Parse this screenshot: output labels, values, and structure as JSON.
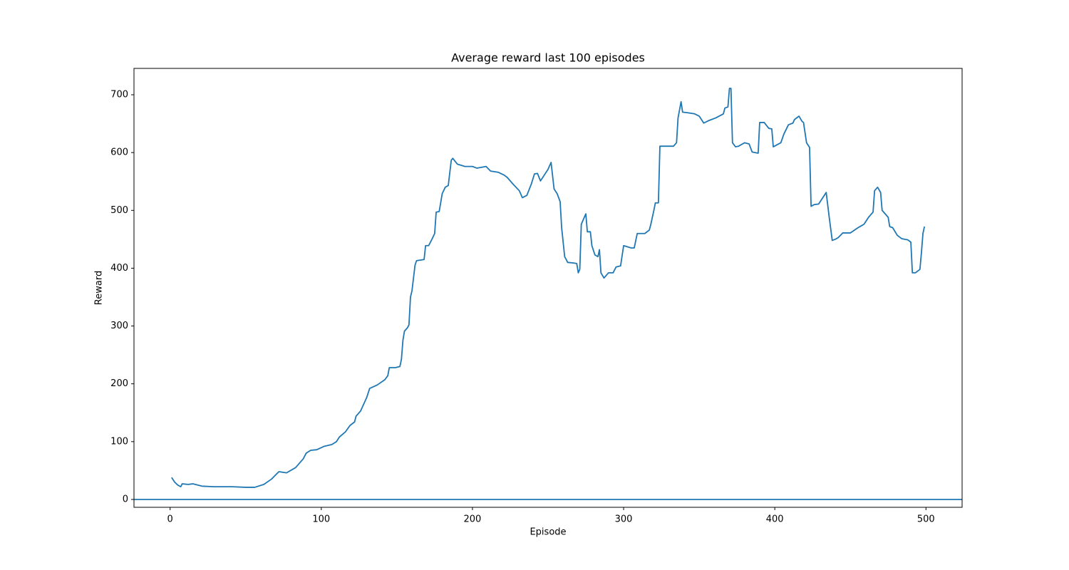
{
  "chart_data": {
    "type": "line",
    "title": "Average reward last 100 episodes",
    "xlabel": "Episode",
    "ylabel": "Reward",
    "x": [
      1,
      3,
      5,
      7,
      8,
      12,
      15,
      21,
      29,
      41,
      50,
      56,
      62,
      67,
      70,
      72,
      77,
      83,
      88,
      90,
      93,
      97,
      102,
      107,
      110,
      112,
      116,
      119,
      122,
      123,
      126,
      130,
      132,
      137,
      142,
      144,
      145,
      149,
      152,
      153,
      154,
      155,
      157,
      158,
      159,
      160,
      162,
      163,
      168,
      169,
      171,
      173,
      175,
      176,
      178,
      180,
      182,
      184,
      186,
      187,
      190,
      195,
      200,
      203,
      209,
      212,
      217,
      221,
      223,
      227,
      231,
      233,
      236,
      239,
      241,
      243,
      245,
      250,
      252,
      254,
      256,
      258,
      259,
      261,
      263,
      267,
      269,
      270,
      271,
      272,
      274,
      275,
      276,
      278,
      279,
      281,
      283,
      284,
      285,
      287,
      290,
      293,
      295,
      298,
      300,
      305,
      307,
      309,
      314,
      317,
      318,
      320,
      321,
      323,
      324,
      327,
      333,
      335,
      336,
      338,
      339,
      342,
      347,
      350,
      353,
      356,
      361,
      366,
      367,
      369,
      370,
      371,
      372,
      374,
      376,
      380,
      383,
      385,
      389,
      390,
      393,
      396,
      398,
      399,
      404,
      406,
      409,
      412,
      413,
      416,
      418,
      419,
      421,
      423,
      424,
      426,
      429,
      434,
      436,
      438,
      440,
      442,
      445,
      450,
      455,
      457,
      459,
      462,
      465,
      466,
      468,
      470,
      471,
      475,
      476,
      478,
      481,
      484,
      488,
      490,
      491,
      493,
      496,
      497,
      498,
      499
    ],
    "series": [
      {
        "name": "reward",
        "color": "#1f77b4",
        "values": [
          38,
          30,
          25,
          22,
          27,
          26,
          27,
          23,
          22,
          22,
          21,
          21,
          26,
          35,
          43,
          48,
          46,
          55,
          70,
          80,
          85,
          86,
          92,
          95,
          100,
          108,
          117,
          128,
          134,
          144,
          153,
          176,
          192,
          198,
          207,
          214,
          228,
          228,
          230,
          242,
          275,
          291,
          297,
          302,
          350,
          361,
          405,
          413,
          415,
          439,
          439,
          449,
          460,
          497,
          498,
          529,
          540,
          543,
          587,
          590,
          580,
          576,
          576,
          573,
          576,
          568,
          566,
          561,
          557,
          545,
          534,
          522,
          526,
          546,
          563,
          564,
          551,
          571,
          583,
          537,
          529,
          515,
          470,
          420,
          410,
          409,
          408,
          392,
          398,
          476,
          488,
          494,
          463,
          463,
          439,
          423,
          420,
          432,
          392,
          383,
          392,
          392,
          402,
          404,
          439,
          435,
          435,
          460,
          460,
          466,
          476,
          500,
          513,
          513,
          611,
          611,
          611,
          617,
          660,
          688,
          670,
          669,
          667,
          663,
          651,
          655,
          660,
          667,
          677,
          679,
          711,
          711,
          617,
          610,
          611,
          617,
          615,
          601,
          599,
          652,
          652,
          642,
          641,
          610,
          617,
          632,
          648,
          651,
          657,
          663,
          654,
          652,
          617,
          609,
          507,
          510,
          511,
          531,
          488,
          448,
          450,
          453,
          461,
          461,
          470,
          473,
          476,
          488,
          497,
          534,
          540,
          531,
          500,
          488,
          472,
          470,
          457,
          451,
          449,
          445,
          392,
          392,
          398,
          427,
          460,
          472
        ]
      }
    ],
    "hline": 0,
    "xlim": [
      -23.9,
      523.9
    ],
    "xticks": [
      0,
      100,
      200,
      300,
      400,
      500
    ],
    "ylim": [
      -13.6,
      745.6
    ],
    "yticks": [
      0,
      100,
      200,
      300,
      400,
      500,
      600,
      700
    ]
  }
}
